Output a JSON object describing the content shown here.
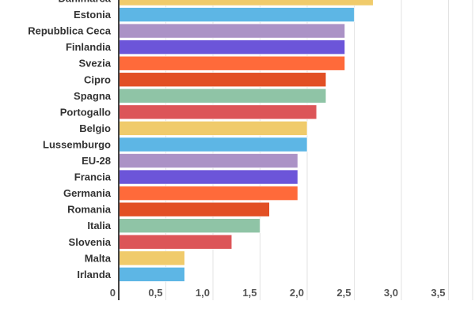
{
  "chart_data": {
    "type": "bar",
    "orientation": "horizontal",
    "categories": [
      "Danimarca",
      "Estonia",
      "Repubblica Ceca",
      "Finlandia",
      "Svezia",
      "Cipro",
      "Spagna",
      "Portogallo",
      "Belgio",
      "Lussemburgo",
      "EU-28",
      "Francia",
      "Germania",
      "Romania",
      "Italia",
      "Slovenia",
      "Malta",
      "Irlanda"
    ],
    "values": [
      2.7,
      2.5,
      2.4,
      2.4,
      2.4,
      2.2,
      2.2,
      2.1,
      2.0,
      2.0,
      1.9,
      1.9,
      1.9,
      1.6,
      1.5,
      1.2,
      0.7,
      0.7
    ],
    "colors": [
      "#f0cb6b",
      "#5db6e5",
      "#ab92c6",
      "#6c55d9",
      "#ff6a3a",
      "#e24f24",
      "#8fc4a6",
      "#dc5558"
    ],
    "xticks": [
      "0",
      "0,5",
      "1,0",
      "1,5",
      "2,0",
      "2,5",
      "3,0",
      "3,5"
    ],
    "xtick_values": [
      0,
      0.5,
      1.0,
      1.5,
      2.0,
      2.5,
      3.0,
      3.5
    ],
    "xlim": [
      0,
      3.75
    ],
    "grid": true,
    "title": "",
    "xlabel": "",
    "ylabel": ""
  }
}
